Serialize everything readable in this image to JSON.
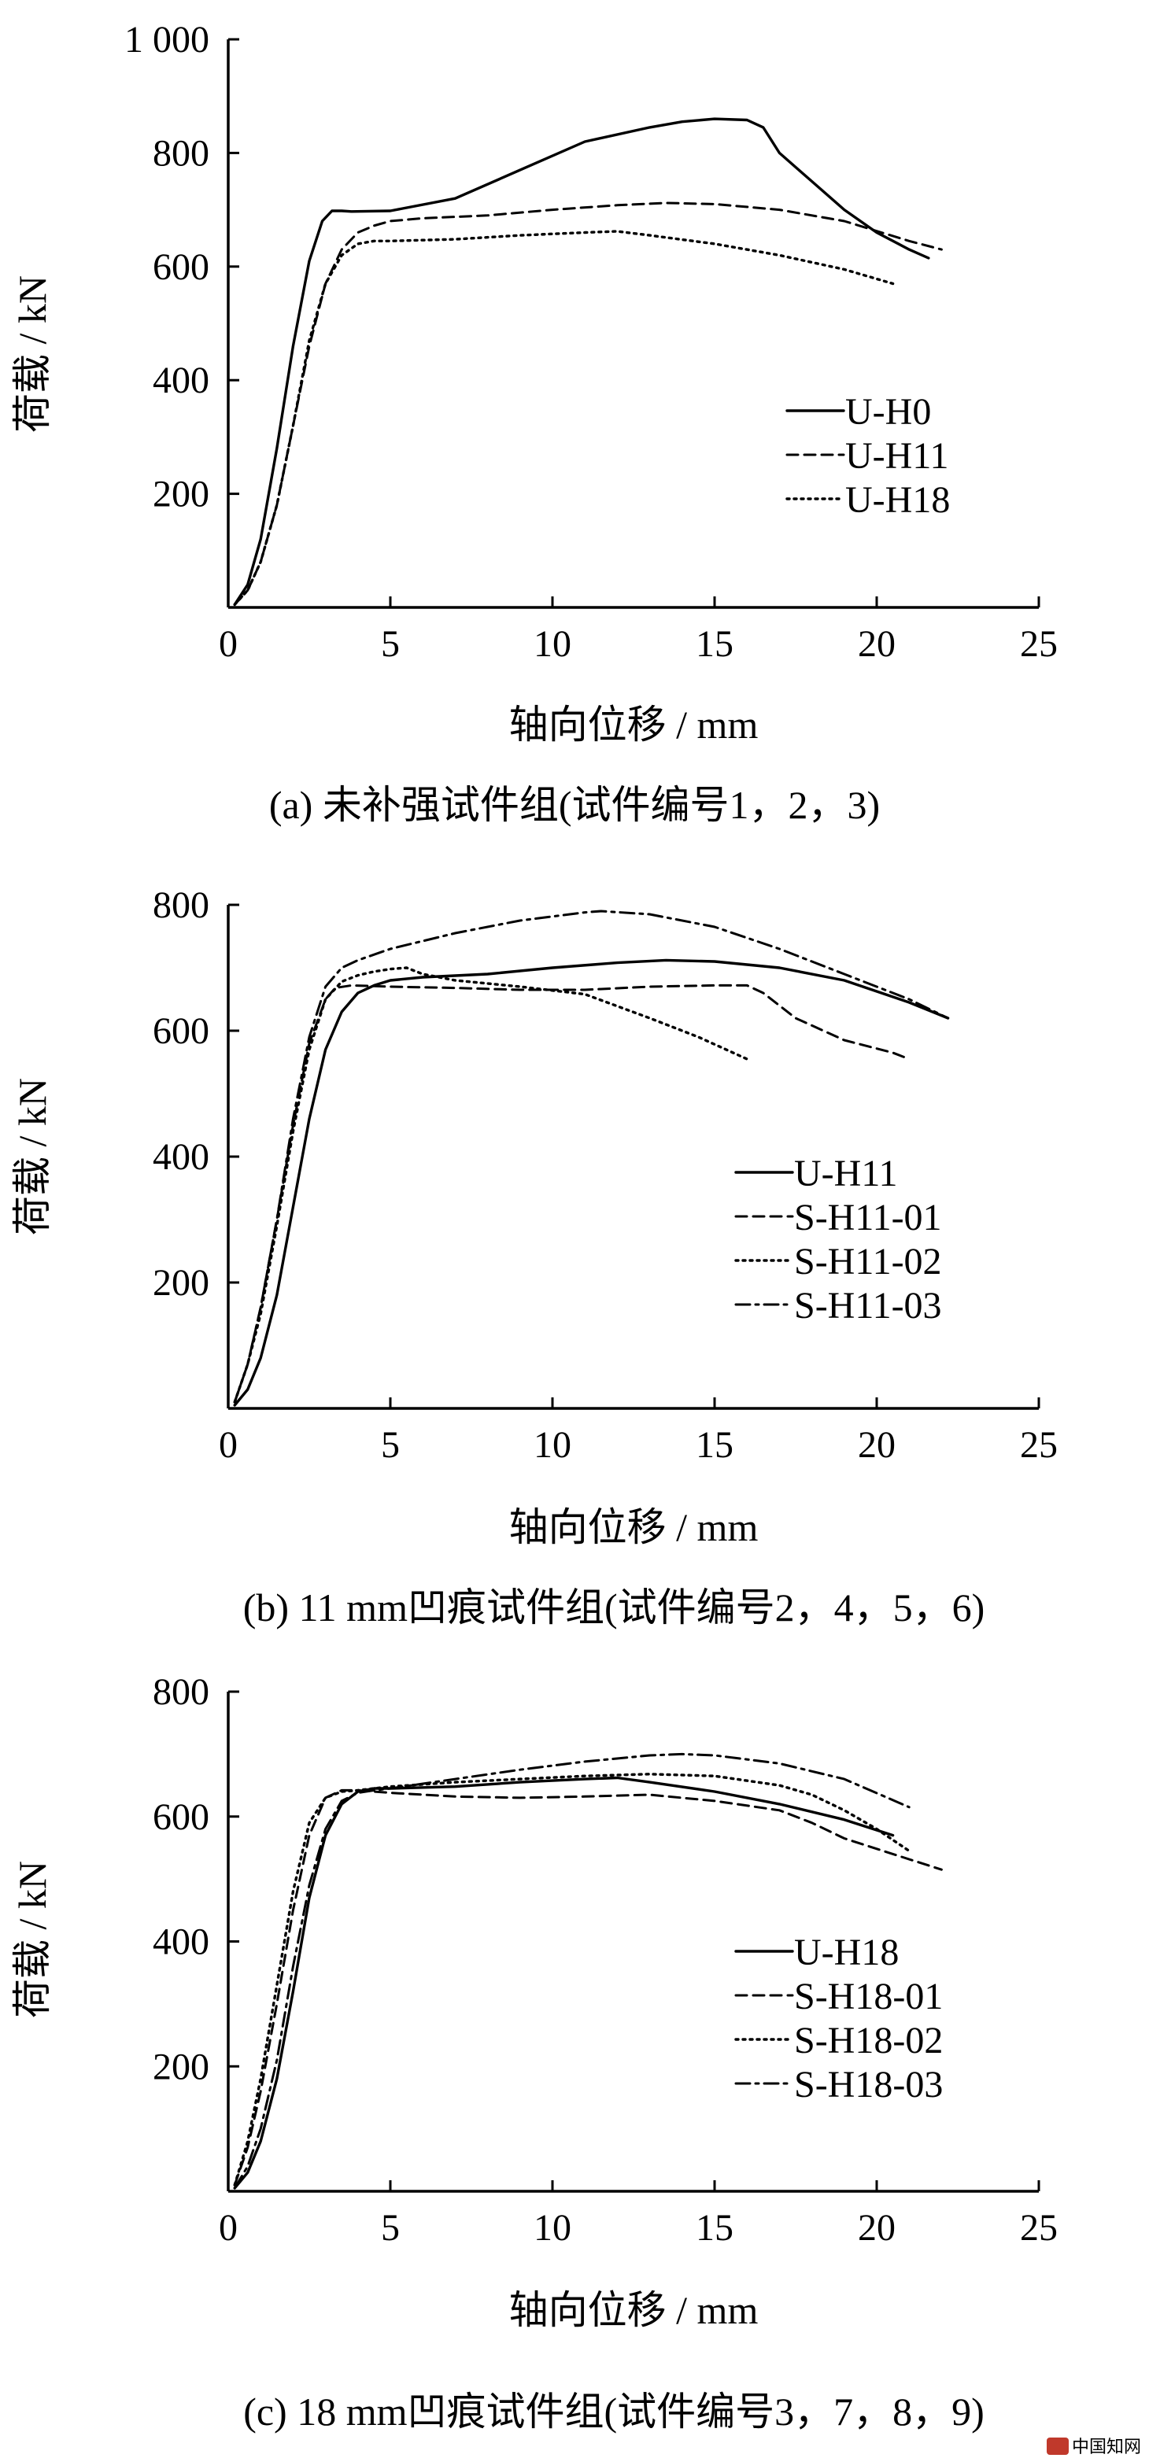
{
  "chart_data": [
    {
      "type": "line",
      "caption": "(a)  未补强试件组(试件编号1，2，3)",
      "xlabel": "轴向位移 / mm",
      "ylabel": "荷载 / kN",
      "xlim": [
        0,
        25
      ],
      "ylim": [
        0,
        1000
      ],
      "xticks": [
        "0",
        "5",
        "10",
        "15",
        "20",
        "25"
      ],
      "yticks": [
        {
          "value": 200,
          "label": "200"
        },
        {
          "value": 400,
          "label": "400"
        },
        {
          "value": 600,
          "label": "600"
        },
        {
          "value": 800,
          "label": "800"
        },
        {
          "value": 1000,
          "label": "1 000"
        }
      ],
      "legend_position": "right",
      "series": [
        {
          "name": "U-H0",
          "style": "solid",
          "x": [
            0.2,
            0.6,
            1.0,
            1.5,
            2.0,
            2.5,
            2.9,
            3.2,
            3.5,
            3.8,
            5,
            7,
            9,
            11,
            13,
            14,
            15,
            16,
            16.5,
            17,
            18,
            19,
            20,
            21,
            21.6
          ],
          "y": [
            5,
            40,
            120,
            280,
            460,
            610,
            680,
            698,
            698,
            697,
            698,
            720,
            770,
            820,
            845,
            855,
            860,
            858,
            845,
            800,
            750,
            700,
            660,
            630,
            615
          ]
        },
        {
          "name": "U-H11",
          "style": "dashed",
          "x": [
            0.2,
            0.6,
            1.0,
            1.5,
            2.0,
            2.5,
            3.0,
            3.5,
            4.0,
            4.5,
            5,
            6,
            8,
            10,
            12,
            13.5,
            15,
            17,
            19,
            21,
            22
          ],
          "y": [
            5,
            30,
            80,
            180,
            320,
            460,
            570,
            630,
            660,
            672,
            680,
            685,
            690,
            700,
            708,
            712,
            710,
            700,
            680,
            645,
            630
          ]
        },
        {
          "name": "U-H18",
          "style": "dotted",
          "x": [
            0.2,
            0.6,
            1.0,
            1.5,
            2.0,
            2.5,
            3.0,
            3.5,
            4.0,
            4.5,
            5,
            7,
            9,
            11,
            12,
            13,
            15,
            17,
            19,
            20.5
          ],
          "y": [
            5,
            30,
            80,
            180,
            320,
            470,
            570,
            620,
            640,
            645,
            645,
            648,
            655,
            660,
            662,
            655,
            640,
            620,
            595,
            570
          ]
        }
      ]
    },
    {
      "type": "line",
      "caption": "(b)  11 mm凹痕试件组(试件编号2，4，5，6)",
      "xlabel": "轴向位移 / mm",
      "ylabel": "荷载 / kN",
      "xlim": [
        0,
        25
      ],
      "ylim": [
        0,
        800
      ],
      "xticks": [
        "0",
        "5",
        "10",
        "15",
        "20",
        "25"
      ],
      "yticks": [
        {
          "value": 200,
          "label": "200"
        },
        {
          "value": 400,
          "label": "400"
        },
        {
          "value": 600,
          "label": "600"
        },
        {
          "value": 800,
          "label": "800"
        }
      ],
      "legend_position": "right",
      "series": [
        {
          "name": "U-H11",
          "style": "solid",
          "x": [
            0.2,
            0.6,
            1.0,
            1.5,
            2.0,
            2.5,
            3.0,
            3.5,
            4.0,
            4.5,
            5,
            6,
            8,
            10,
            12,
            13.5,
            15,
            17,
            19,
            21,
            22.2
          ],
          "y": [
            5,
            30,
            80,
            180,
            320,
            460,
            570,
            630,
            660,
            672,
            680,
            685,
            690,
            700,
            708,
            712,
            710,
            700,
            680,
            645,
            620
          ]
        },
        {
          "name": "S-H11-01",
          "style": "dashed",
          "x": [
            0.2,
            0.6,
            1.0,
            1.5,
            2.0,
            2.5,
            3.0,
            3.3,
            3.8,
            5,
            7,
            9,
            11,
            13,
            15,
            16,
            16.5,
            17.5,
            19,
            20.5,
            21
          ],
          "y": [
            10,
            70,
            160,
            300,
            450,
            580,
            650,
            668,
            672,
            670,
            668,
            665,
            665,
            670,
            672,
            672,
            660,
            620,
            585,
            565,
            555
          ]
        },
        {
          "name": "S-H11-02",
          "style": "dotted",
          "x": [
            0.2,
            0.6,
            1.0,
            1.5,
            2.0,
            2.5,
            3.0,
            3.5,
            4.0,
            4.5,
            5.0,
            5.5,
            6.0,
            7,
            9,
            11,
            13,
            14.5,
            16
          ],
          "y": [
            10,
            70,
            150,
            290,
            440,
            570,
            650,
            678,
            688,
            694,
            698,
            700,
            690,
            680,
            670,
            658,
            620,
            590,
            555
          ]
        },
        {
          "name": "S-H11-03",
          "style": "dashdot",
          "x": [
            0.2,
            0.6,
            1.0,
            1.5,
            2.0,
            2.5,
            3.0,
            3.5,
            4.0,
            5,
            7,
            9,
            11,
            11.5,
            13,
            15,
            17,
            19,
            21,
            22.2
          ],
          "y": [
            10,
            70,
            160,
            300,
            460,
            590,
            670,
            700,
            712,
            730,
            755,
            775,
            788,
            790,
            785,
            765,
            730,
            690,
            650,
            620
          ]
        }
      ]
    },
    {
      "type": "line",
      "caption": "(c)  18 mm凹痕试件组(试件编号3，7，8，9)",
      "xlabel": "轴向位移 / mm",
      "ylabel": "荷载 / kN",
      "xlim": [
        0,
        25
      ],
      "ylim": [
        0,
        800
      ],
      "xticks": [
        "0",
        "5",
        "10",
        "15",
        "20",
        "25"
      ],
      "yticks": [
        {
          "value": 200,
          "label": "200"
        },
        {
          "value": 400,
          "label": "400"
        },
        {
          "value": 600,
          "label": "600"
        },
        {
          "value": 800,
          "label": "800"
        }
      ],
      "legend_position": "right",
      "series": [
        {
          "name": "U-H18",
          "style": "solid",
          "x": [
            0.2,
            0.6,
            1.0,
            1.5,
            2.0,
            2.5,
            3.0,
            3.5,
            4.0,
            4.5,
            5,
            7,
            9,
            11,
            12,
            13,
            15,
            17,
            19,
            20.5
          ],
          "y": [
            5,
            30,
            80,
            180,
            320,
            470,
            570,
            620,
            640,
            645,
            645,
            648,
            655,
            660,
            662,
            655,
            640,
            620,
            595,
            570
          ]
        },
        {
          "name": "S-H18-01",
          "style": "dashed",
          "x": [
            0.2,
            0.6,
            1.0,
            1.5,
            2.0,
            2.5,
            3.0,
            3.5,
            4.0,
            5,
            7,
            9,
            11,
            13,
            15,
            17,
            18,
            19,
            20.5,
            22
          ],
          "y": [
            10,
            70,
            160,
            300,
            450,
            570,
            630,
            642,
            642,
            638,
            632,
            630,
            632,
            635,
            625,
            610,
            590,
            565,
            540,
            515
          ]
        },
        {
          "name": "S-H18-02",
          "style": "dotted",
          "x": [
            0.2,
            0.6,
            1.0,
            1.5,
            2.0,
            2.5,
            3.0,
            3.5,
            4.0,
            5,
            7,
            9,
            11,
            13,
            15,
            17,
            18,
            19,
            20,
            21
          ],
          "y": [
            10,
            80,
            180,
            330,
            480,
            590,
            630,
            640,
            642,
            648,
            655,
            660,
            665,
            668,
            665,
            650,
            635,
            610,
            580,
            545
          ]
        },
        {
          "name": "S-H18-03",
          "style": "dashdot",
          "x": [
            0.2,
            0.6,
            1.0,
            1.5,
            2.0,
            2.5,
            3.0,
            3.5,
            4.0,
            4.5,
            5,
            7,
            9,
            11,
            13,
            14,
            15,
            17,
            19,
            21
          ],
          "y": [
            5,
            40,
            100,
            210,
            360,
            490,
            580,
            625,
            638,
            642,
            645,
            660,
            675,
            688,
            698,
            700,
            698,
            685,
            660,
            615
          ]
        }
      ]
    }
  ],
  "watermark": {
    "text": "中国知网",
    "color": "#c0392b"
  }
}
